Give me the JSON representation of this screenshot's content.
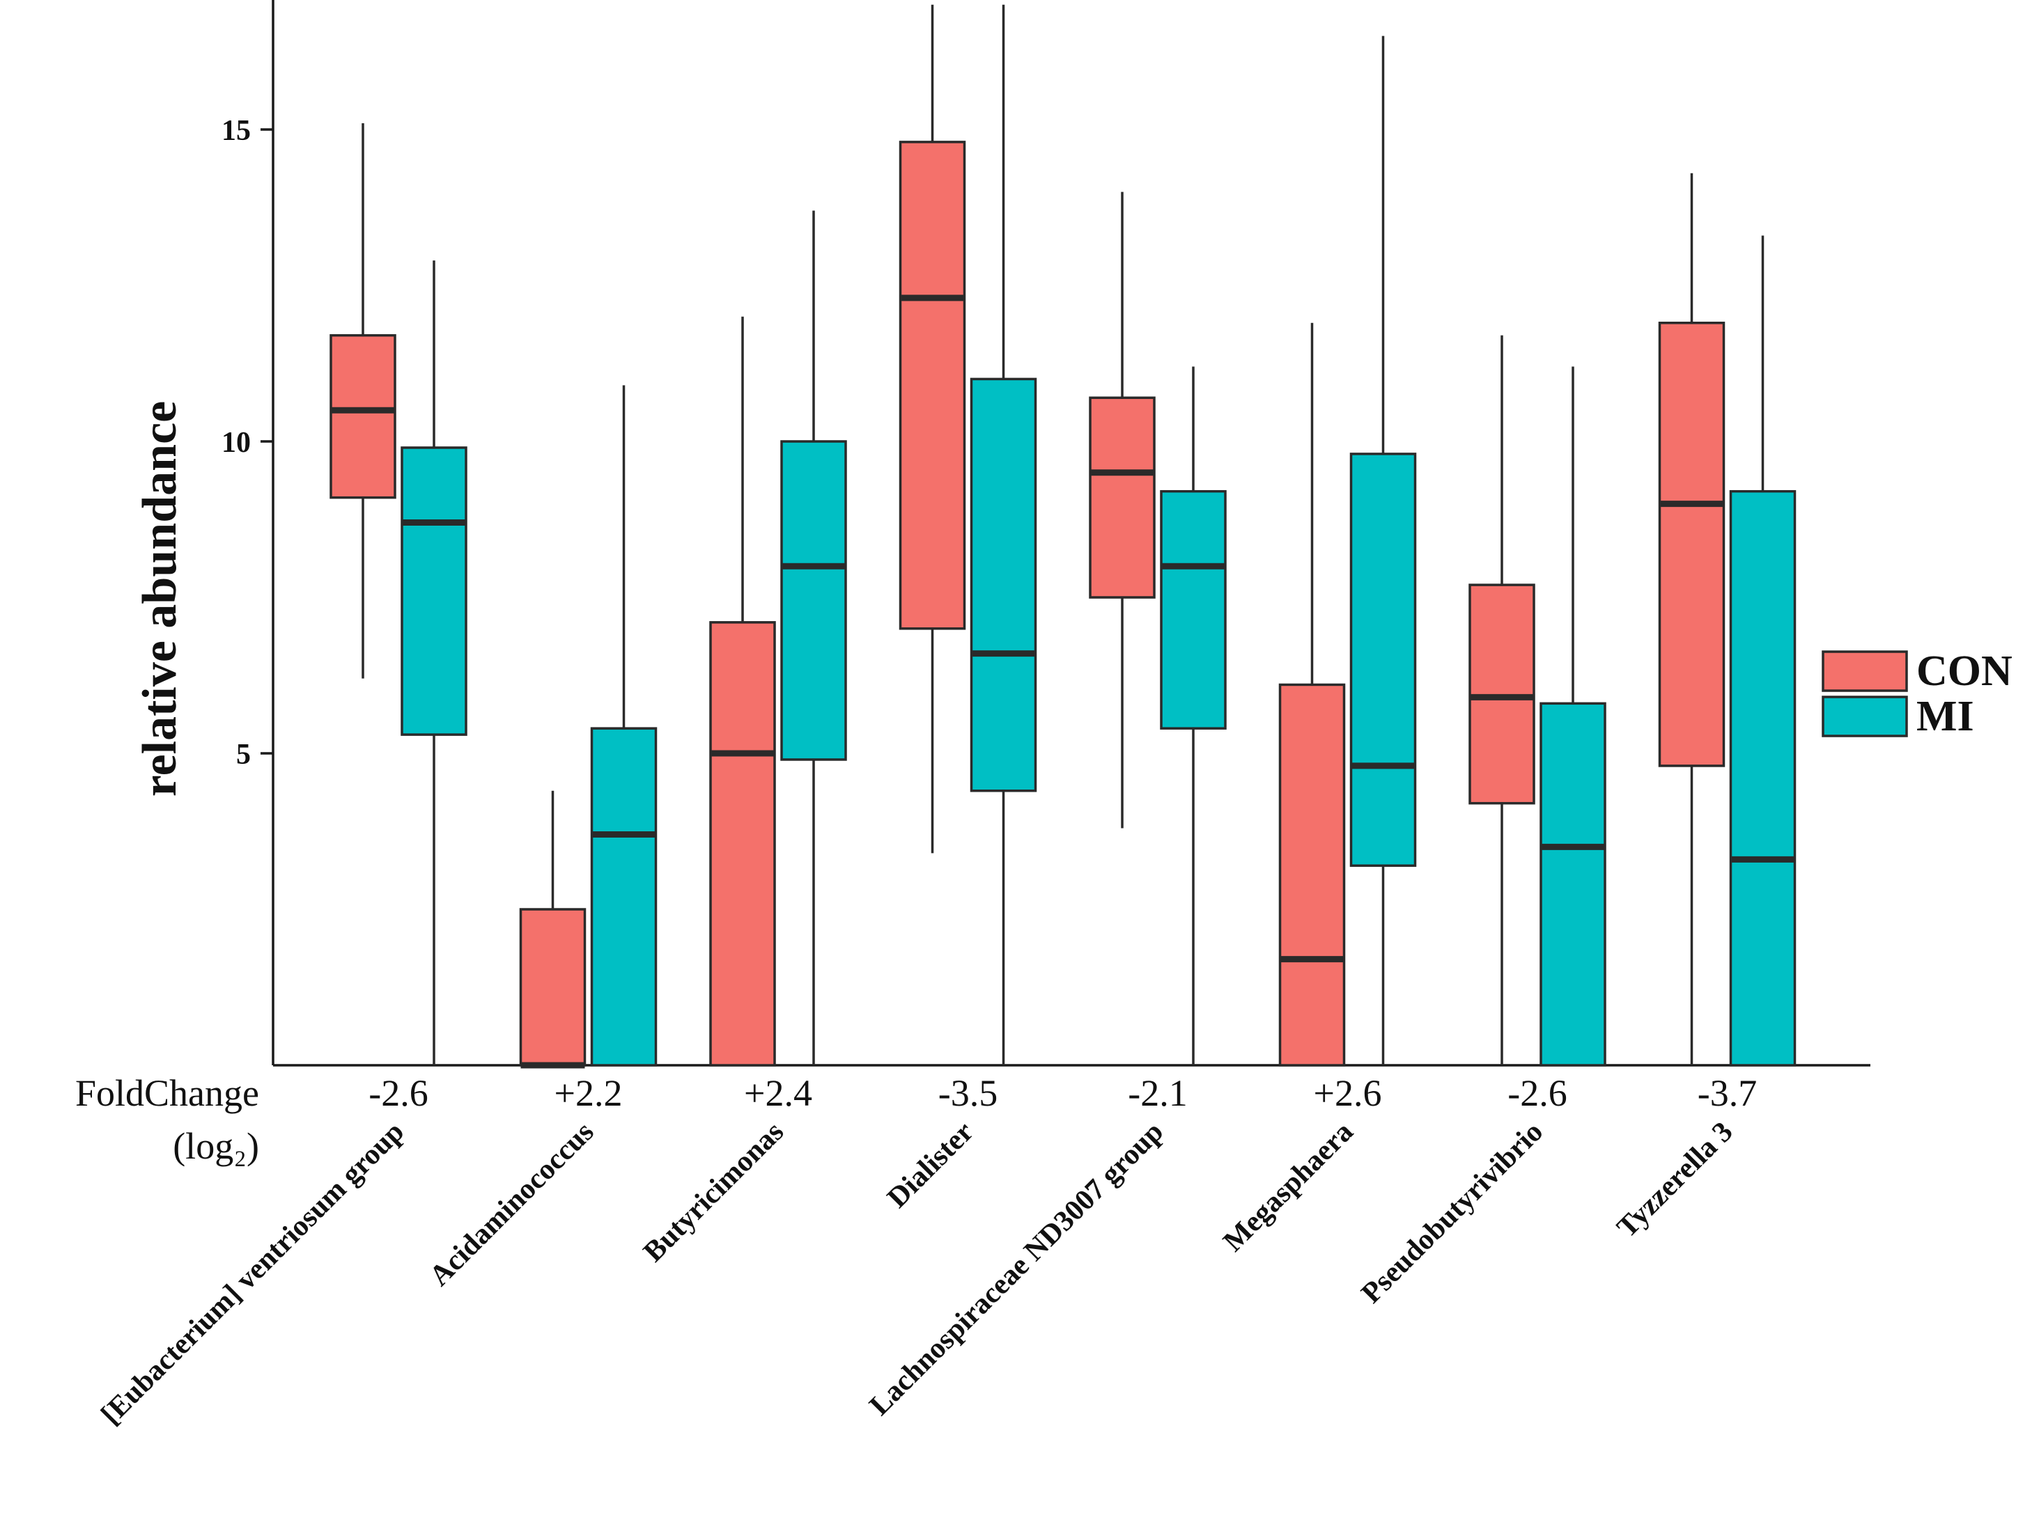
{
  "chart_data": {
    "type": "boxplot",
    "ylabel": "relative abundance",
    "ylim": [
      0,
      17
    ],
    "yticks": [
      5,
      10,
      15
    ],
    "grid": false,
    "categories": [
      "[Eubacterium] ventriosum group",
      "Acidaminococcus",
      "Butyricimonas",
      "Dialister",
      "Lachnospiraceae ND3007 group",
      "Megasphaera",
      "Pseudobutyrivibrio",
      "Tyzzerella 3"
    ],
    "foldchange_label": "FoldChange",
    "foldchange_sublabel": "(log₂)",
    "foldchange": [
      "-2.6",
      "+2.2",
      "+2.4",
      "-3.5",
      "-2.1",
      "+2.6",
      "-2.6",
      "-3.7"
    ],
    "legend_position": "right",
    "series": [
      {
        "name": "CON",
        "color": "#F4716B",
        "boxes": [
          {
            "min": 6.2,
            "q1": 9.1,
            "median": 10.5,
            "q3": 11.7,
            "max": 15.1
          },
          {
            "min": 0.0,
            "q1": 0.0,
            "median": 0.0,
            "q3": 2.5,
            "max": 4.4
          },
          {
            "min": 0.0,
            "q1": 0.0,
            "median": 5.0,
            "q3": 7.1,
            "max": 12.0
          },
          {
            "min": 3.4,
            "q1": 7.0,
            "median": 12.3,
            "q3": 14.8,
            "max": 17.0
          },
          {
            "min": 3.8,
            "q1": 7.5,
            "median": 9.5,
            "q3": 10.7,
            "max": 14.0
          },
          {
            "min": 0.0,
            "q1": 0.0,
            "median": 1.7,
            "q3": 6.1,
            "max": 11.9
          },
          {
            "min": 0.0,
            "q1": 4.2,
            "median": 5.9,
            "q3": 7.7,
            "max": 11.7
          },
          {
            "min": 0.0,
            "q1": 4.8,
            "median": 9.0,
            "q3": 11.9,
            "max": 14.3
          }
        ]
      },
      {
        "name": "MI",
        "color": "#00BFC4",
        "boxes": [
          {
            "min": 0.0,
            "q1": 5.3,
            "median": 8.7,
            "q3": 9.9,
            "max": 12.9
          },
          {
            "min": 0.0,
            "q1": 0.0,
            "median": 3.7,
            "q3": 5.4,
            "max": 10.9
          },
          {
            "min": 0.0,
            "q1": 4.9,
            "median": 8.0,
            "q3": 10.0,
            "max": 13.7
          },
          {
            "min": 0.0,
            "q1": 4.4,
            "median": 6.6,
            "q3": 11.0,
            "max": 17.0
          },
          {
            "min": 0.0,
            "q1": 5.4,
            "median": 8.0,
            "q3": 9.2,
            "max": 11.2
          },
          {
            "min": 0.0,
            "q1": 3.2,
            "median": 4.8,
            "q3": 9.8,
            "max": 16.5
          },
          {
            "min": 0.0,
            "q1": 0.0,
            "median": 3.5,
            "q3": 5.8,
            "max": 11.2
          },
          {
            "min": 0.0,
            "q1": 0.0,
            "median": 3.3,
            "q3": 9.2,
            "max": 13.3
          }
        ]
      }
    ]
  }
}
